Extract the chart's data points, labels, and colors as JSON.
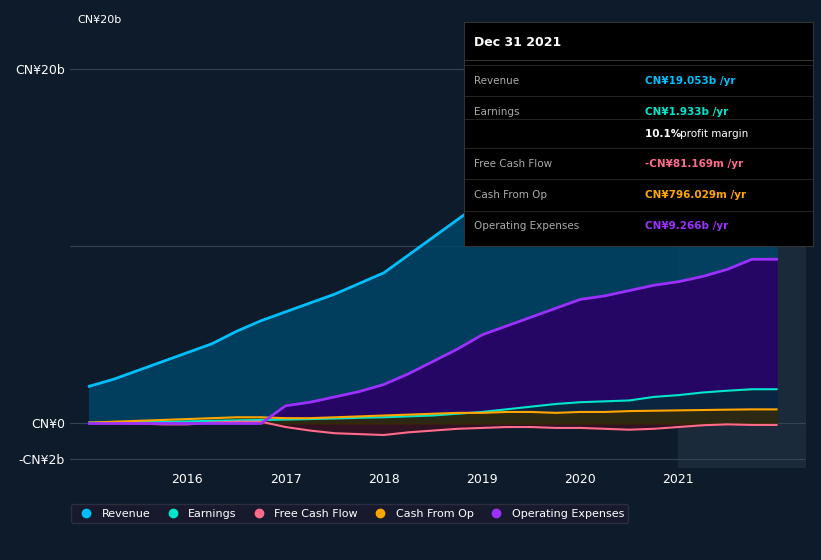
{
  "background_color": "#0d1b2a",
  "plot_bg_color": "#0d1b2a",
  "highlight_bg_color": "#1a2a3a",
  "highlight_x_start": 2021.0,
  "highlight_x_end": 2022.3,
  "years": [
    2015.0,
    2015.25,
    2015.5,
    2015.75,
    2016.0,
    2016.25,
    2016.5,
    2016.75,
    2017.0,
    2017.25,
    2017.5,
    2017.75,
    2018.0,
    2018.25,
    2018.5,
    2018.75,
    2019.0,
    2019.25,
    2019.5,
    2019.75,
    2020.0,
    2020.25,
    2020.5,
    2020.75,
    2021.0,
    2021.25,
    2021.5,
    2021.75,
    2022.0
  ],
  "revenue": [
    2.1,
    2.5,
    3.0,
    3.5,
    4.0,
    4.5,
    5.2,
    5.8,
    6.3,
    6.8,
    7.3,
    7.9,
    8.5,
    9.5,
    10.5,
    11.5,
    12.5,
    13.0,
    13.5,
    14.0,
    14.5,
    14.0,
    13.5,
    14.0,
    15.5,
    17.0,
    18.0,
    19.0,
    19.053
  ],
  "earnings": [
    0.05,
    0.06,
    0.08,
    0.1,
    0.12,
    0.15,
    0.18,
    0.2,
    0.22,
    0.25,
    0.28,
    0.32,
    0.35,
    0.4,
    0.45,
    0.55,
    0.65,
    0.8,
    0.95,
    1.1,
    1.2,
    1.25,
    1.3,
    1.5,
    1.6,
    1.75,
    1.85,
    1.933,
    1.933
  ],
  "free_cash_flow": [
    0.02,
    0.01,
    0.0,
    -0.05,
    -0.05,
    0.05,
    0.1,
    0.1,
    -0.2,
    -0.4,
    -0.55,
    -0.6,
    -0.65,
    -0.5,
    -0.4,
    -0.3,
    -0.25,
    -0.2,
    -0.2,
    -0.25,
    -0.25,
    -0.3,
    -0.35,
    -0.3,
    -0.2,
    -0.1,
    -0.05,
    -0.081,
    -0.081
  ],
  "cash_from_op": [
    0.05,
    0.1,
    0.15,
    0.2,
    0.25,
    0.3,
    0.35,
    0.35,
    0.3,
    0.3,
    0.35,
    0.4,
    0.45,
    0.5,
    0.55,
    0.6,
    0.6,
    0.65,
    0.65,
    0.6,
    0.65,
    0.65,
    0.7,
    0.72,
    0.74,
    0.76,
    0.78,
    0.796,
    0.796
  ],
  "operating_expenses": [
    0.0,
    0.0,
    0.0,
    0.0,
    0.0,
    0.0,
    0.0,
    0.0,
    1.0,
    1.2,
    1.5,
    1.8,
    2.2,
    2.8,
    3.5,
    4.2,
    5.0,
    5.5,
    6.0,
    6.5,
    7.0,
    7.2,
    7.5,
    7.8,
    8.0,
    8.3,
    8.7,
    9.266,
    9.266
  ],
  "revenue_color": "#00bfff",
  "revenue_fill": "#004466",
  "earnings_color": "#00e5cc",
  "earnings_fill": "#003333",
  "free_cash_flow_color": "#ff6b8a",
  "free_cash_flow_fill": "#3a1020",
  "cash_from_op_color": "#ffa500",
  "cash_from_op_fill": "#3a2a00",
  "op_exp_color": "#9b30ff",
  "op_exp_fill": "#2a0066",
  "ylim_min": -2.5,
  "ylim_max": 22.0,
  "xlim_min": 2014.8,
  "xlim_max": 2022.3,
  "ytick_labels": [
    "CN¥20b",
    "CN¥0",
    "-CN¥2b"
  ],
  "ytick_values": [
    20,
    0,
    -2
  ],
  "grid_values": [
    20,
    10,
    0,
    -2
  ],
  "xtick_labels": [
    "2016",
    "2017",
    "2018",
    "2019",
    "2020",
    "2021"
  ],
  "xtick_values": [
    2016,
    2017,
    2018,
    2019,
    2020,
    2021
  ],
  "legend_items": [
    "Revenue",
    "Earnings",
    "Free Cash Flow",
    "Cash From Op",
    "Operating Expenses"
  ],
  "legend_colors": [
    "#00bfff",
    "#00e5cc",
    "#ff6b8a",
    "#ffa500",
    "#9b30ff"
  ],
  "tooltip_bg": "#000000",
  "tooltip_title": "Dec 31 2021",
  "tooltip_revenue_val": "CN¥19.053b /yr",
  "tooltip_earnings_val": "CN¥1.933b /yr",
  "tooltip_profit_margin": "10.1% profit margin",
  "tooltip_fcf_val": "-CN¥81.169m /yr",
  "tooltip_cashop_val": "CN¥796.029m /yr",
  "tooltip_opex_val": "CN¥9.266b /yr"
}
